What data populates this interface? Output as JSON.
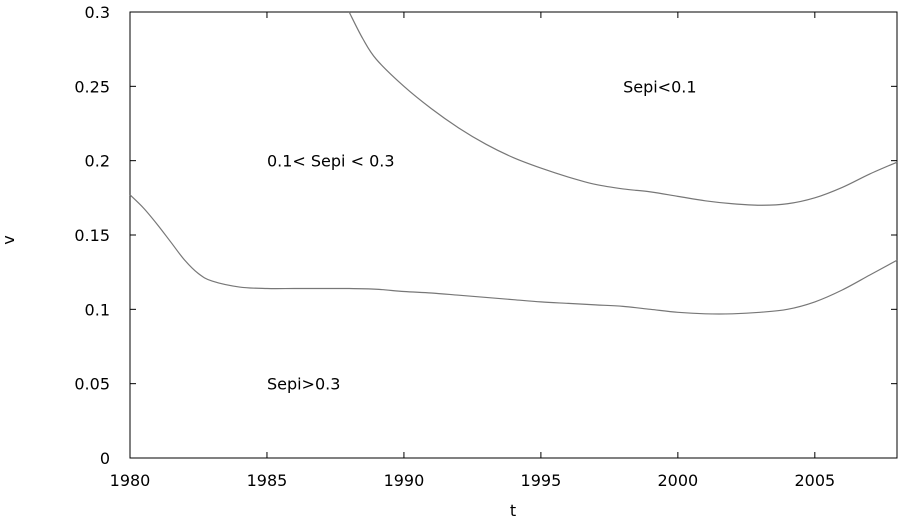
{
  "chart_data": {
    "type": "line",
    "xlabel": "t",
    "ylabel": "v",
    "xlim": [
      1980,
      2008
    ],
    "ylim": [
      0,
      0.3
    ],
    "xticks": [
      1980,
      1985,
      1990,
      1995,
      2000,
      2005
    ],
    "xtick_labels": [
      "1980",
      "1985",
      "1990",
      "1995",
      "2000",
      "2005"
    ],
    "yticks": [
      0,
      0.05,
      0.1,
      0.15,
      0.2,
      0.25,
      0.3
    ],
    "ytick_labels": [
      "0",
      "0.05",
      "0.1",
      "0.15",
      "0.2",
      "0.25",
      "0.3"
    ],
    "grid": false,
    "series": [
      {
        "color": "#777777",
        "x": [
          1988,
          1988.5,
          1989,
          1990,
          1991,
          1992,
          1993,
          1994,
          1995,
          1996,
          1997,
          1998,
          1999,
          2000,
          2001,
          2002,
          2003,
          2004,
          2005,
          2006,
          2007,
          2008
        ],
        "y": [
          0.3,
          0.282,
          0.268,
          0.25,
          0.235,
          0.222,
          0.211,
          0.202,
          0.195,
          0.189,
          0.184,
          0.181,
          0.179,
          0.176,
          0.173,
          0.171,
          0.17,
          0.171,
          0.175,
          0.182,
          0.191,
          0.199
        ]
      },
      {
        "color": "#777777",
        "x": [
          1980,
          1980.5,
          1981,
          1981.5,
          1982,
          1982.5,
          1983,
          1984,
          1985,
          1986,
          1987,
          1988,
          1989,
          1990,
          1991,
          1992,
          1993,
          1994,
          1995,
          1996,
          1997,
          1998,
          1999,
          2000,
          2001,
          2002,
          2003,
          2004,
          2005,
          2006,
          2007,
          2008
        ],
        "y": [
          0.177,
          0.168,
          0.157,
          0.145,
          0.133,
          0.124,
          0.119,
          0.115,
          0.114,
          0.114,
          0.114,
          0.114,
          0.1135,
          0.112,
          0.111,
          0.1095,
          0.108,
          0.1065,
          0.105,
          0.104,
          0.103,
          0.102,
          0.1,
          0.098,
          0.097,
          0.097,
          0.098,
          0.1,
          0.105,
          0.113,
          0.123,
          0.133
        ]
      }
    ],
    "annotations": [
      {
        "text": "Sepi<0.1",
        "x": 1998,
        "y": 0.25
      },
      {
        "text": "0.1< Sepi < 0.3",
        "x": 1985,
        "y": 0.2
      },
      {
        "text": "Sepi>0.3",
        "x": 1985,
        "y": 0.05
      }
    ]
  }
}
